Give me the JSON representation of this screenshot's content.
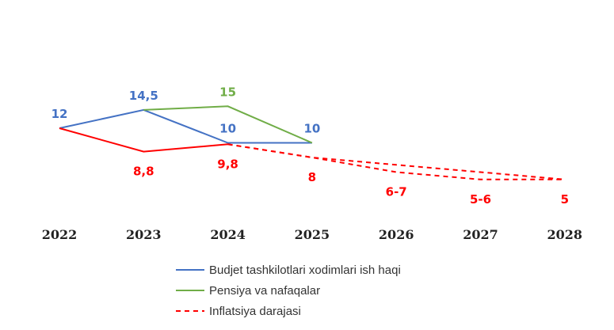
{
  "chart_data": {
    "type": "line",
    "categories": [
      "2022",
      "2023",
      "2024",
      "2025",
      "2026",
      "2027",
      "2028"
    ],
    "series": [
      {
        "name": "Budjet tashkilotlari xodimlari ish haqi",
        "color": "#4472C4",
        "style": "solid",
        "values": [
          12,
          14.5,
          10,
          10,
          null,
          null,
          null
        ],
        "labels": [
          "12",
          "14,5",
          "10",
          "10",
          "",
          "",
          ""
        ]
      },
      {
        "name": "Pensiya va nafaqalar",
        "color": "#70AD47",
        "style": "solid",
        "values": [
          null,
          14.5,
          15,
          10,
          null,
          null,
          null
        ],
        "labels": [
          "",
          "",
          "15",
          "",
          "",
          "",
          ""
        ]
      },
      {
        "name": "Inflatsiya darajasi",
        "color": "#FF0000",
        "style": "solid-then-dashed",
        "values": [
          12,
          8.8,
          9.8,
          8,
          [
            6,
            7
          ],
          [
            5,
            6
          ],
          5
        ],
        "labels": [
          "",
          "8,8",
          "9,8",
          "8",
          "6-7",
          "5-6",
          "5"
        ]
      }
    ],
    "legend_position": "bottom",
    "grid": false
  }
}
